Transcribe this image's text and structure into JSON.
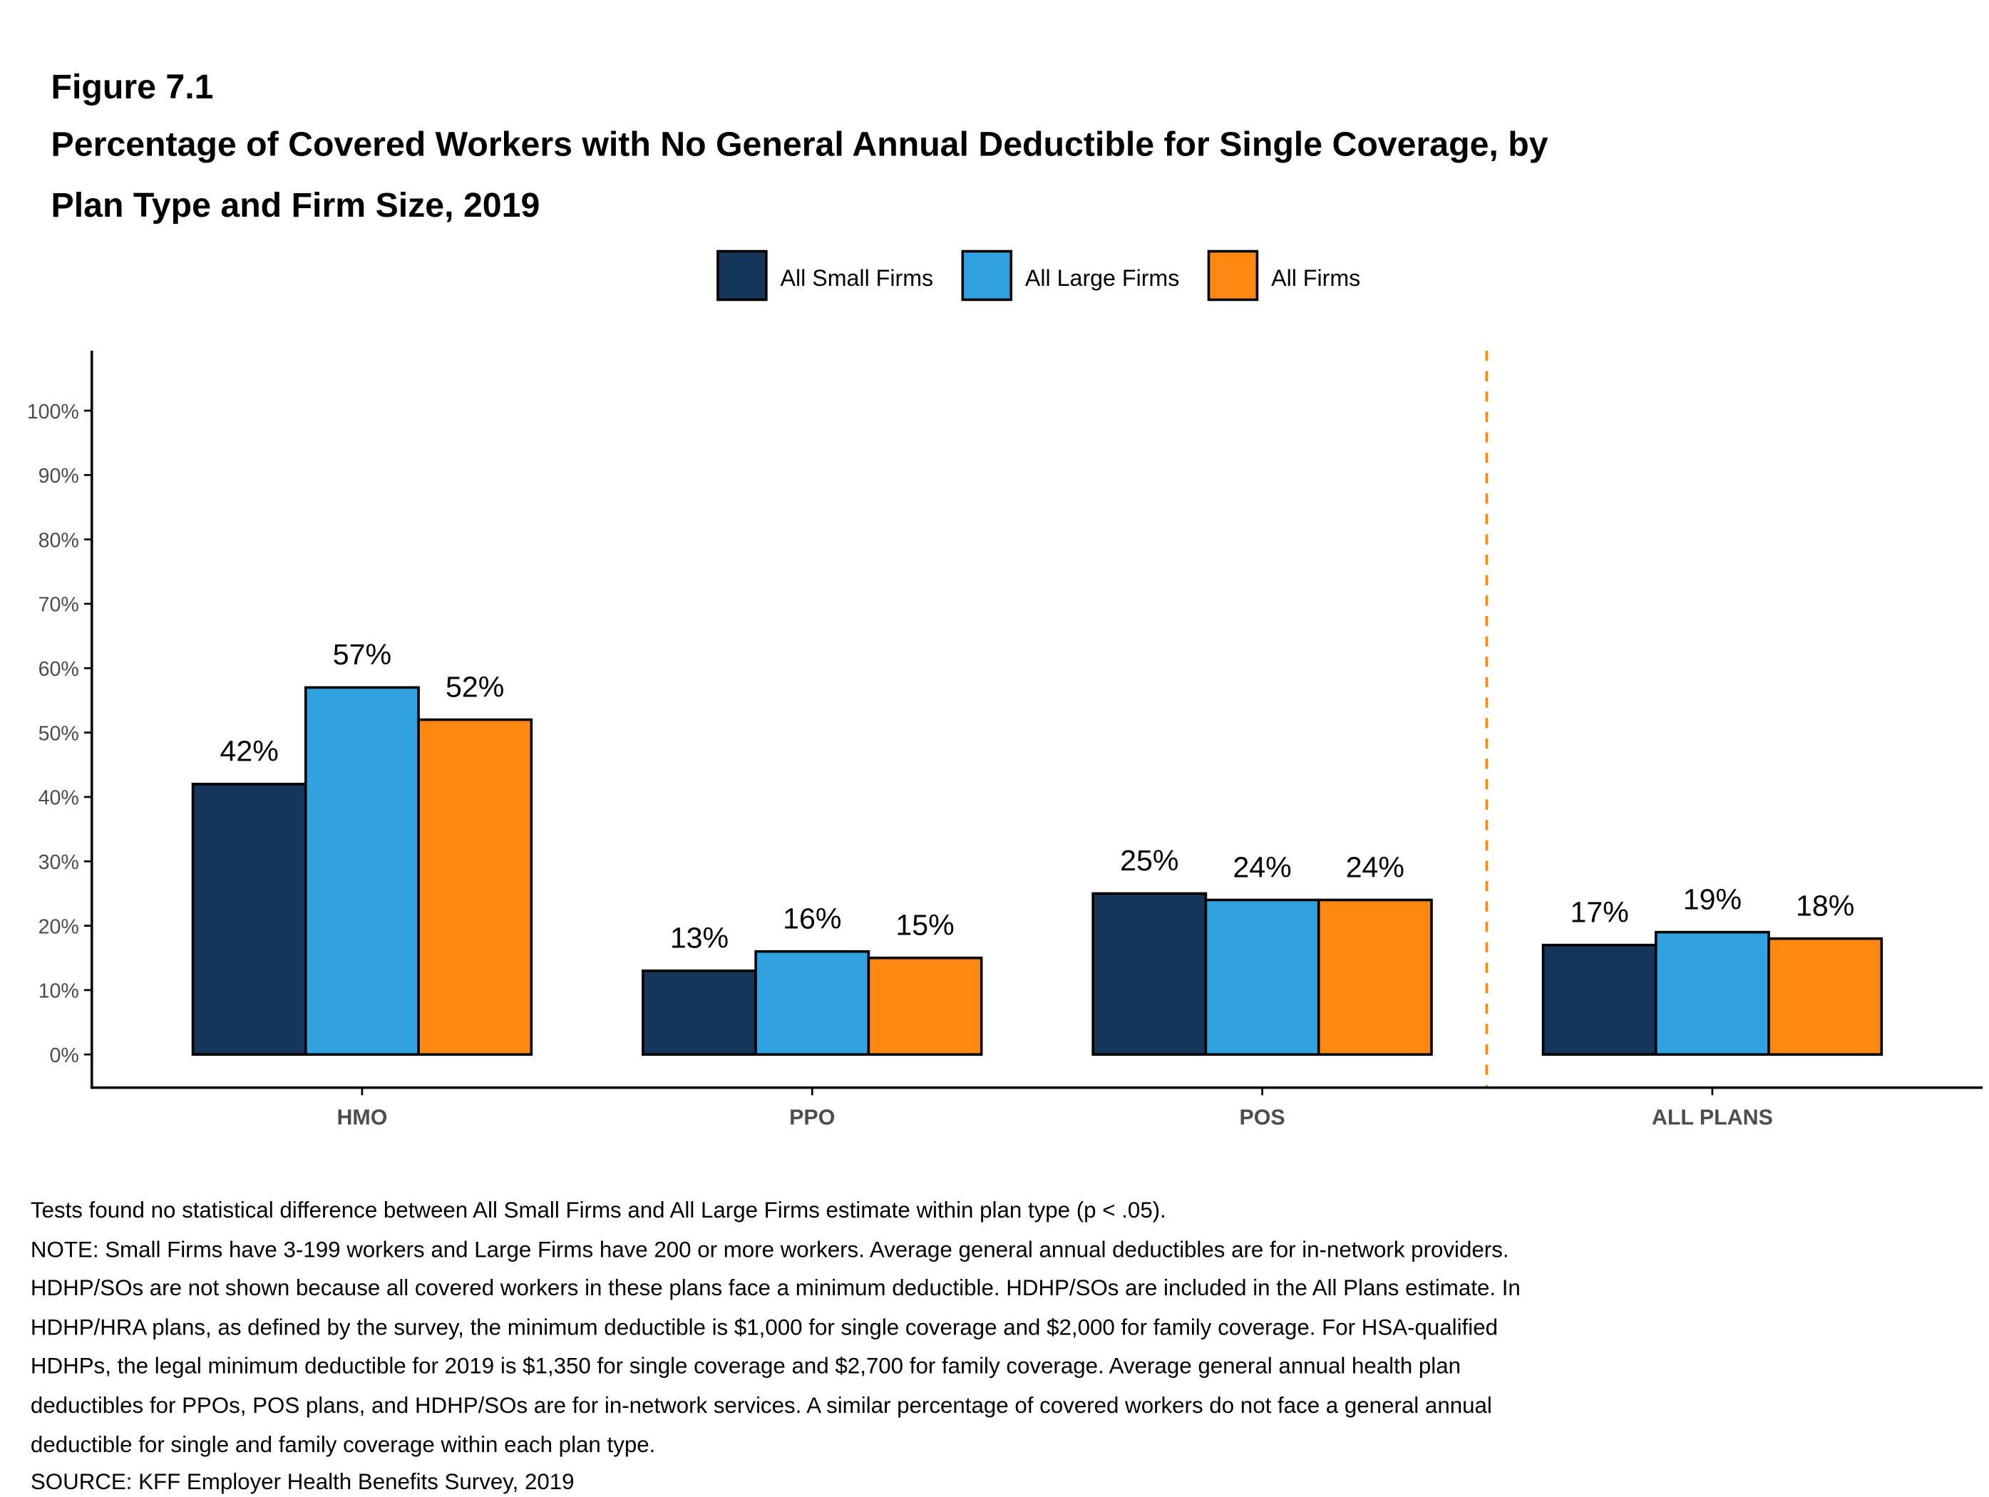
{
  "figure_label": "Figure 7.1",
  "title_lines": [
    "Percentage of Covered Workers with No General Annual Deductible for Single Coverage, by",
    "Plan Type and Firm Size, 2019"
  ],
  "chart_data": {
    "type": "bar",
    "title": "Percentage of Covered Workers with No General Annual Deductible for Single Coverage, by Plan Type and Firm Size, 2019",
    "categories": [
      "HMO",
      "PPO",
      "POS",
      "ALL PLANS"
    ],
    "series": [
      {
        "name": "All Small Firms",
        "color": "#15355a",
        "values": [
          42,
          13,
          25,
          17
        ],
        "labels": [
          "42%",
          "13%",
          "25%",
          "17%"
        ]
      },
      {
        "name": "All Large Firms",
        "color": "#31a2e0",
        "values": [
          57,
          16,
          24,
          19
        ],
        "labels": [
          "57%",
          "16%",
          "24%",
          "19%"
        ]
      },
      {
        "name": "All Firms",
        "color": "#ff8812",
        "values": [
          52,
          15,
          24,
          18
        ],
        "labels": [
          "52%",
          "15%",
          "24%",
          "18%"
        ]
      }
    ],
    "ylim": [
      0,
      100
    ],
    "yticks": [
      "0%",
      "10%",
      "20%",
      "30%",
      "40%",
      "50%",
      "60%",
      "70%",
      "80%",
      "90%",
      "100%"
    ],
    "xlabel": "",
    "ylabel": "",
    "grid": false,
    "legend_position": "top",
    "separator": {
      "style": "dashed",
      "color": "#ff8812",
      "between": [
        "POS",
        "ALL PLANS"
      ]
    }
  },
  "notes": [
    "Tests found no statistical difference between All Small Firms and All Large Firms estimate within plan type (p < .05).",
    "NOTE: Small Firms have 3-199 workers and Large Firms have 200 or more workers. Average general annual deductibles are for in-network providers.",
    "HDHP/SOs are not shown because all covered workers in these plans face a minimum deductible. HDHP/SOs are included in the All Plans estimate. In",
    "HDHP/HRA plans, as defined by the survey, the minimum deductible is $1,000 for single coverage and $2,000 for family coverage. For HSA-qualified",
    "HDHPs, the legal minimum deductible for 2019 is $1,350 for single coverage and $2,700 for family coverage. Average general annual health plan",
    "deductibles for PPOs, POS plans, and HDHP/SOs are for in-network services. A similar percentage of covered workers do not face a general annual",
    "deductible for single and family coverage within each plan type.",
    "SOURCE: KFF Employer Health Benefits Survey, 2019"
  ]
}
